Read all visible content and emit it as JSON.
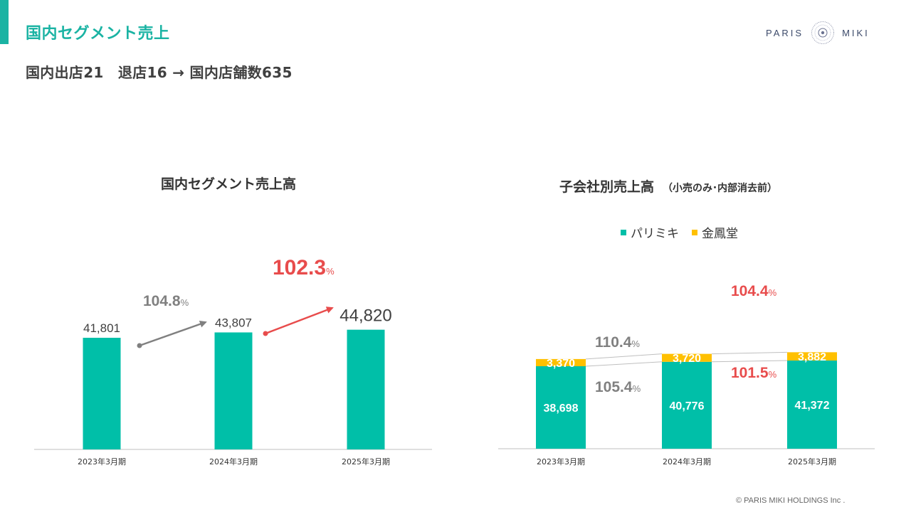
{
  "header": {
    "title": "国内セグメント売上",
    "subtitle": "国内出店21　退店16 → 国内店舗数635",
    "logo_left": "PARIS",
    "logo_right": "MIKI",
    "copyright": "© PARIS MIKI HOLDINGS Inc ."
  },
  "colors": {
    "accent": "#1ab3a3",
    "bar_teal": "#00bfa8",
    "bar_yellow": "#ffc000",
    "growth_gray": "#808080",
    "growth_red": "#e84c4c"
  },
  "chart_data": [
    {
      "type": "bar",
      "title": "国内セグメント売上高",
      "categories": [
        "2023年3月期",
        "2024年3月期",
        "2025年3月期"
      ],
      "values": [
        41801,
        43807,
        44820
      ],
      "value_labels": [
        "41,801",
        "43,807",
        "44,820"
      ],
      "growth": [
        {
          "from": 0,
          "to": 1,
          "label": "104.8",
          "unit": "%",
          "color": "gray"
        },
        {
          "from": 1,
          "to": 2,
          "label": "102.3",
          "unit": "%",
          "color": "red"
        }
      ],
      "grid": false
    },
    {
      "type": "bar",
      "stacked": true,
      "title": "子会社別売上高",
      "title_note": "（小売のみ･内部消去前）",
      "categories": [
        "2023年3月期",
        "2024年3月期",
        "2025年3月期"
      ],
      "series": [
        {
          "name": "パリミキ",
          "values": [
            38698,
            40776,
            41372
          ],
          "labels": [
            "38,698",
            "40,776",
            "41,372"
          ],
          "color": "#00bfa8"
        },
        {
          "name": "金鳳堂",
          "values": [
            3370,
            3720,
            3882
          ],
          "labels": [
            "3,370",
            "3,720",
            "3,882"
          ],
          "color": "#ffc000"
        }
      ],
      "growth": [
        {
          "series": "金鳳堂",
          "from": 0,
          "to": 1,
          "label": "110.4",
          "unit": "%",
          "color": "gray"
        },
        {
          "series": "パリミキ",
          "from": 0,
          "to": 1,
          "label": "105.4",
          "unit": "%",
          "color": "gray"
        },
        {
          "series": "金鳳堂",
          "from": 1,
          "to": 2,
          "label": "104.4",
          "unit": "%",
          "color": "red"
        },
        {
          "series": "パリミキ",
          "from": 1,
          "to": 2,
          "label": "101.5",
          "unit": "%",
          "color": "red"
        }
      ],
      "legend": "top",
      "grid": false
    }
  ]
}
